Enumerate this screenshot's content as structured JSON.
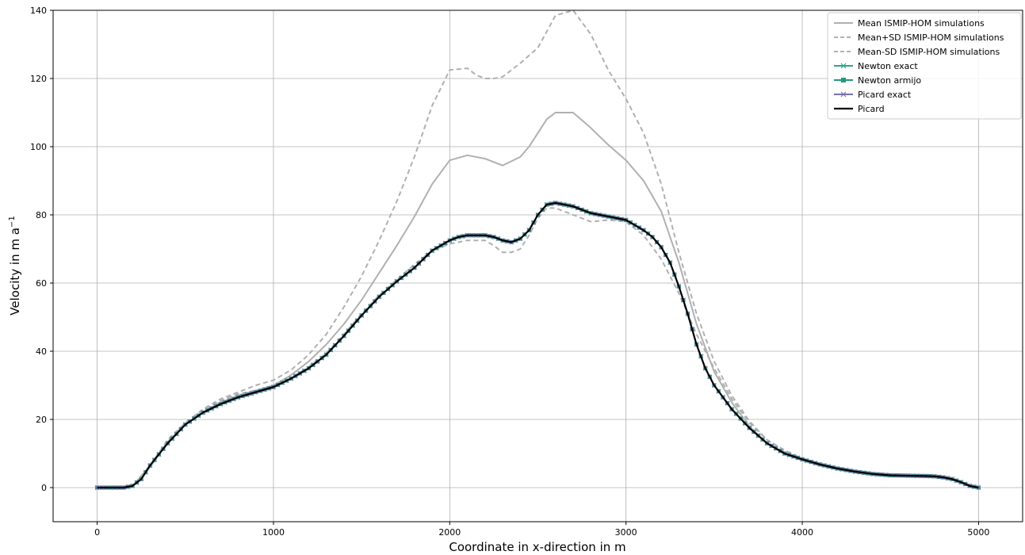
{
  "chart_data": {
    "type": "line",
    "title": "",
    "xlabel": "Coordinate in x-direction in m",
    "ylabel": "Velocity in m a",
    "ylabel_superscript": "−1",
    "xlim": [
      -250,
      5250
    ],
    "ylim": [
      -10,
      140
    ],
    "xticks": [
      0,
      1000,
      2000,
      3000,
      4000,
      5000
    ],
    "xtick_labels": [
      "0",
      "1000",
      "2000",
      "3000",
      "4000",
      "5000"
    ],
    "yticks": [
      0,
      20,
      40,
      60,
      80,
      100,
      120,
      140
    ],
    "ytick_labels": [
      "0",
      "20",
      "40",
      "60",
      "80",
      "100",
      "120",
      "140"
    ],
    "grid": true,
    "legend_position": "top-right",
    "series": [
      {
        "name": "Mean ISMIP-HOM simulations",
        "color": "#b0b0b0",
        "style": "solid",
        "marker": "none",
        "x": [
          0,
          100,
          200,
          300,
          400,
          500,
          600,
          700,
          800,
          900,
          1000,
          1100,
          1200,
          1300,
          1400,
          1500,
          1600,
          1700,
          1800,
          1900,
          2000,
          2100,
          2200,
          2300,
          2400,
          2450,
          2500,
          2550,
          2600,
          2700,
          2800,
          2900,
          3000,
          3100,
          3200,
          3300,
          3400,
          3500,
          3600,
          3700,
          3800,
          3900,
          4000,
          4100,
          4200,
          4300,
          4400,
          4500,
          4600,
          4700,
          4800,
          4900,
          5000
        ],
        "y": [
          0,
          0,
          0.5,
          6,
          13.5,
          18.5,
          22,
          25,
          27,
          28.5,
          30,
          33,
          37,
          42,
          48,
          55,
          63,
          71,
          79.5,
          89,
          96,
          97.5,
          96.5,
          94.5,
          97,
          100,
          104,
          108,
          110,
          110,
          105.5,
          100.5,
          96,
          90,
          81,
          66,
          48,
          34,
          25,
          18,
          13,
          10,
          8,
          6.5,
          5.3,
          4.5,
          3.8,
          3.5,
          3.5,
          3.3,
          3,
          1.5,
          0
        ]
      },
      {
        "name": "Mean+SD  ISMIP-HOM simulations",
        "color": "#b0b0b0",
        "style": "dashed",
        "marker": "none",
        "x": [
          0,
          100,
          200,
          300,
          400,
          500,
          600,
          700,
          800,
          900,
          1000,
          1100,
          1200,
          1300,
          1400,
          1500,
          1600,
          1700,
          1800,
          1900,
          2000,
          2100,
          2150,
          2200,
          2250,
          2300,
          2400,
          2500,
          2600,
          2700,
          2800,
          2900,
          3000,
          3100,
          3200,
          3300,
          3400,
          3500,
          3600,
          3700,
          3800,
          3900,
          4000,
          4100,
          4200,
          4300,
          4400,
          4500,
          4600,
          4700,
          4800,
          4900,
          5000
        ],
        "y": [
          0,
          0,
          0.5,
          6.5,
          14,
          19,
          23,
          26,
          28,
          30,
          31.5,
          34.5,
          39,
          45,
          53,
          62,
          72.5,
          84,
          97,
          112,
          122.5,
          123,
          121,
          120,
          120,
          120.5,
          124.5,
          129,
          138.5,
          140,
          133,
          122.5,
          114,
          104,
          89,
          69,
          51,
          37,
          27,
          19.5,
          14,
          10.5,
          8.5,
          7,
          5.6,
          4.8,
          4.2,
          3.8,
          3.7,
          3.5,
          3.2,
          1.6,
          0
        ]
      },
      {
        "name": "Mean-SD ISMIP-HOM simulations",
        "color": "#b0b0b0",
        "style": "dashed",
        "marker": "none",
        "x": [
          0,
          100,
          200,
          300,
          400,
          500,
          600,
          700,
          800,
          900,
          1000,
          1100,
          1200,
          1300,
          1400,
          1500,
          1600,
          1700,
          1800,
          1900,
          2000,
          2100,
          2200,
          2250,
          2300,
          2350,
          2400,
          2450,
          2500,
          2550,
          2600,
          2700,
          2800,
          2900,
          3000,
          3100,
          3200,
          3300,
          3400,
          3500,
          3600,
          3700,
          3800,
          3900,
          4000,
          4100,
          4200,
          4300,
          4400,
          4500,
          4600,
          4700,
          4800,
          4900,
          5000
        ],
        "y": [
          0,
          0,
          0.5,
          6,
          13.5,
          18.5,
          22.5,
          25.5,
          27.5,
          28.5,
          29.5,
          32,
          35.5,
          39.5,
          45,
          51,
          56.5,
          61,
          65.5,
          69.5,
          71.5,
          72.5,
          72.5,
          71,
          69,
          69,
          70,
          74,
          79,
          82,
          82,
          80,
          78,
          78.5,
          78,
          74,
          67,
          57,
          45,
          35,
          26,
          19,
          14,
          11,
          8.5,
          7,
          5.8,
          5,
          4.3,
          4,
          3.8,
          3.5,
          3.1,
          1.5,
          0
        ]
      },
      {
        "name": "Newton exact",
        "color": "#2ca58d",
        "style": "solid",
        "marker": "x",
        "x": [
          0,
          100,
          150,
          200,
          250,
          300,
          400,
          500,
          600,
          700,
          800,
          900,
          1000,
          1100,
          1200,
          1300,
          1400,
          1500,
          1600,
          1700,
          1800,
          1900,
          2000,
          2050,
          2100,
          2150,
          2200,
          2250,
          2300,
          2350,
          2400,
          2450,
          2500,
          2550,
          2600,
          2650,
          2700,
          2800,
          2900,
          3000,
          3050,
          3100,
          3150,
          3200,
          3250,
          3300,
          3350,
          3400,
          3450,
          3500,
          3600,
          3700,
          3800,
          3900,
          4000,
          4100,
          4200,
          4300,
          4400,
          4500,
          4600,
          4700,
          4750,
          4800,
          4850,
          4900,
          4950,
          5000
        ],
        "y": [
          0,
          0,
          0,
          0.5,
          2.5,
          6.5,
          13,
          18.5,
          22,
          24.5,
          26.5,
          28,
          29.5,
          32,
          35,
          39,
          44.5,
          50.5,
          56,
          60.5,
          64.5,
          69.5,
          72.5,
          73.5,
          74,
          74,
          74,
          73.5,
          72.5,
          72,
          73,
          75.5,
          80,
          83,
          83.5,
          83,
          82.5,
          80.5,
          79.5,
          78.5,
          77,
          75.5,
          73.5,
          70.5,
          66,
          59,
          51,
          42,
          35,
          30,
          23,
          17.5,
          13,
          10,
          8.3,
          6.8,
          5.6,
          4.7,
          4,
          3.6,
          3.5,
          3.4,
          3.3,
          3,
          2.5,
          1.6,
          0.5,
          0
        ]
      },
      {
        "name": "Newton armijo",
        "color": "#23977c",
        "style": "solid",
        "marker": "s",
        "x": [
          0,
          100,
          150,
          200,
          250,
          300,
          400,
          500,
          600,
          700,
          800,
          900,
          1000,
          1100,
          1200,
          1300,
          1400,
          1500,
          1600,
          1700,
          1800,
          1900,
          2000,
          2050,
          2100,
          2150,
          2200,
          2250,
          2300,
          2350,
          2400,
          2450,
          2500,
          2550,
          2600,
          2650,
          2700,
          2800,
          2900,
          3000,
          3050,
          3100,
          3150,
          3200,
          3250,
          3300,
          3350,
          3400,
          3450,
          3500,
          3600,
          3700,
          3800,
          3900,
          4000,
          4100,
          4200,
          4300,
          4400,
          4500,
          4600,
          4700,
          4750,
          4800,
          4850,
          4900,
          4950,
          5000
        ],
        "y": [
          0,
          0,
          0,
          0.5,
          2.5,
          6.5,
          13,
          18.5,
          22,
          24.5,
          26.5,
          28,
          29.5,
          32,
          35,
          39,
          44.5,
          50.5,
          56,
          60.5,
          64.5,
          69.5,
          72.5,
          73.5,
          74,
          74,
          74,
          73.5,
          72.5,
          72,
          73,
          75.5,
          80,
          83,
          83.5,
          83,
          82.5,
          80.5,
          79.5,
          78.5,
          77,
          75.5,
          73.5,
          70.5,
          66,
          59,
          51,
          42,
          35,
          30,
          23,
          17.5,
          13,
          10,
          8.3,
          6.8,
          5.6,
          4.7,
          4,
          3.6,
          3.5,
          3.4,
          3.3,
          3,
          2.5,
          1.6,
          0.5,
          0
        ]
      },
      {
        "name": "Picard exact",
        "color": "#7570b3",
        "style": "solid",
        "marker": "x",
        "x": [
          0,
          100,
          150,
          200,
          250,
          300,
          400,
          500,
          600,
          700,
          800,
          900,
          1000,
          1100,
          1200,
          1300,
          1400,
          1500,
          1600,
          1700,
          1800,
          1900,
          2000,
          2050,
          2100,
          2150,
          2200,
          2250,
          2300,
          2350,
          2400,
          2450,
          2500,
          2550,
          2600,
          2650,
          2700,
          2800,
          2900,
          3000,
          3050,
          3100,
          3150,
          3200,
          3250,
          3300,
          3350,
          3400,
          3450,
          3500,
          3600,
          3700,
          3800,
          3900,
          4000,
          4100,
          4200,
          4300,
          4400,
          4500,
          4600,
          4700,
          4750,
          4800,
          4850,
          4900,
          4950,
          5000
        ],
        "y": [
          0,
          0,
          0,
          0.5,
          2.5,
          6.5,
          13,
          18.5,
          22,
          24.5,
          26.5,
          28,
          29.5,
          32,
          35,
          39,
          44.5,
          50.5,
          56,
          60.5,
          64.5,
          69.5,
          72.5,
          73.5,
          74,
          74,
          74,
          73.5,
          72.5,
          72,
          73,
          75.5,
          80,
          83,
          83.5,
          83,
          82.5,
          80.5,
          79.5,
          78.5,
          77,
          75.5,
          73.5,
          70.5,
          66,
          59,
          51,
          42,
          35,
          30,
          23,
          17.5,
          13,
          10,
          8.3,
          6.8,
          5.6,
          4.7,
          4,
          3.6,
          3.5,
          3.4,
          3.3,
          3,
          2.5,
          1.6,
          0.5,
          0
        ]
      },
      {
        "name": "Picard",
        "color": "#000000",
        "style": "solid",
        "marker": "none",
        "x": [
          0,
          100,
          150,
          200,
          250,
          300,
          400,
          500,
          600,
          700,
          800,
          900,
          1000,
          1100,
          1200,
          1300,
          1400,
          1500,
          1600,
          1700,
          1800,
          1900,
          2000,
          2050,
          2100,
          2150,
          2200,
          2250,
          2300,
          2350,
          2400,
          2450,
          2500,
          2550,
          2600,
          2650,
          2700,
          2800,
          2900,
          3000,
          3050,
          3100,
          3150,
          3200,
          3250,
          3300,
          3350,
          3400,
          3450,
          3500,
          3600,
          3700,
          3800,
          3900,
          4000,
          4100,
          4200,
          4300,
          4400,
          4500,
          4600,
          4700,
          4750,
          4800,
          4850,
          4900,
          4950,
          5000
        ],
        "y": [
          0,
          0,
          0,
          0.5,
          2.5,
          6.5,
          13,
          18.5,
          22,
          24.5,
          26.5,
          28,
          29.5,
          32,
          35,
          39,
          44.5,
          50.5,
          56,
          60.5,
          64.5,
          69.5,
          72.5,
          73.5,
          74,
          74,
          74,
          73.5,
          72.5,
          72,
          73,
          75.5,
          80,
          83,
          83.5,
          83,
          82.5,
          80.5,
          79.5,
          78.5,
          77,
          75.5,
          73.5,
          70.5,
          66,
          59,
          51,
          42,
          35,
          30,
          23,
          17.5,
          13,
          10,
          8.3,
          6.8,
          5.6,
          4.7,
          4,
          3.6,
          3.5,
          3.4,
          3.3,
          3,
          2.5,
          1.6,
          0.5,
          0
        ]
      }
    ]
  }
}
